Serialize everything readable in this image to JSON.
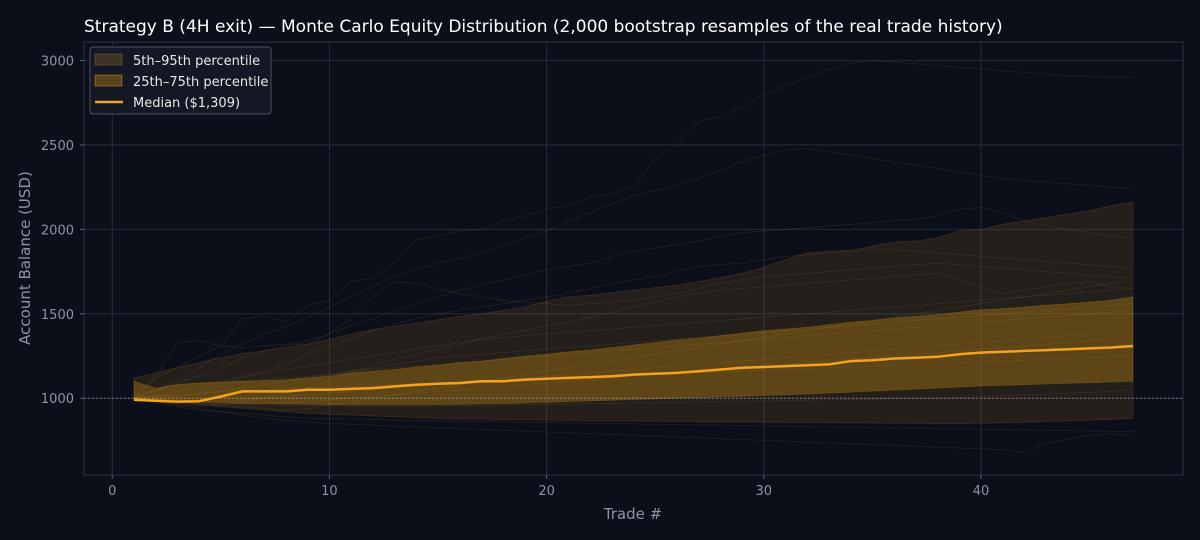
{
  "chart_data": {
    "type": "line",
    "title": "Strategy B (4H exit) — Monte Carlo Equity Distribution (2,000 bootstrap resamples of the real trade history)",
    "xlabel": "Trade #",
    "ylabel": "Account Balance (USD)",
    "xlim": [
      -1.3,
      49.3
    ],
    "ylim": [
      545,
      3110
    ],
    "xticks": [
      0,
      10,
      20,
      30,
      40
    ],
    "yticks": [
      1000,
      1500,
      2000,
      2500,
      3000
    ],
    "grid": true,
    "legend_position": "top-left",
    "reference_line": {
      "y": 1000,
      "style": "dotted"
    },
    "x": [
      1,
      2,
      3,
      4,
      5,
      6,
      7,
      8,
      9,
      10,
      11,
      12,
      13,
      14,
      15,
      16,
      17,
      18,
      19,
      20,
      21,
      22,
      23,
      24,
      25,
      26,
      27,
      28,
      29,
      30,
      31,
      32,
      33,
      34,
      35,
      36,
      37,
      38,
      39,
      40,
      41,
      42,
      43,
      44,
      45,
      46,
      47
    ],
    "series": [
      {
        "name": "5th–95th percentile",
        "kind": "band",
        "color": "#a0702a",
        "lower": [
          990,
          980,
          970,
          960,
          950,
          940,
          930,
          920,
          910,
          905,
          900,
          895,
          890,
          885,
          880,
          878,
          876,
          874,
          872,
          870,
          868,
          866,
          865,
          864,
          863,
          862,
          861,
          860,
          859,
          858,
          857,
          856,
          855,
          854,
          853,
          852,
          851,
          850,
          850,
          852,
          855,
          858,
          862,
          866,
          870,
          875,
          880
        ],
        "upper": [
          1120,
          1150,
          1180,
          1210,
          1240,
          1265,
          1280,
          1300,
          1320,
          1350,
          1380,
          1405,
          1425,
          1445,
          1465,
          1485,
          1500,
          1520,
          1540,
          1575,
          1600,
          1610,
          1625,
          1640,
          1655,
          1670,
          1690,
          1715,
          1740,
          1775,
          1820,
          1860,
          1870,
          1875,
          1900,
          1925,
          1930,
          1950,
          1990,
          2000,
          2030,
          2050,
          2070,
          2090,
          2110,
          2140,
          2160
        ]
      },
      {
        "name": "25th–75th percentile",
        "kind": "band",
        "color": "#d9940f",
        "lower": [
          990,
          985,
          982,
          978,
          975,
          970,
          968,
          966,
          964,
          962,
          960,
          960,
          960,
          961,
          962,
          964,
          966,
          968,
          972,
          976,
          980,
          984,
          988,
          992,
          996,
          1000,
          1004,
          1008,
          1012,
          1016,
          1020,
          1025,
          1030,
          1036,
          1042,
          1048,
          1054,
          1060,
          1066,
          1072,
          1076,
          1080,
          1084,
          1088,
          1092,
          1096,
          1100
        ],
        "upper": [
          1100,
          1060,
          1080,
          1090,
          1095,
          1100,
          1105,
          1110,
          1120,
          1130,
          1150,
          1160,
          1170,
          1185,
          1195,
          1210,
          1220,
          1235,
          1250,
          1260,
          1275,
          1285,
          1300,
          1315,
          1330,
          1345,
          1355,
          1370,
          1385,
          1400,
          1410,
          1420,
          1435,
          1450,
          1460,
          1475,
          1485,
          1495,
          1510,
          1525,
          1530,
          1540,
          1550,
          1560,
          1570,
          1580,
          1600
        ]
      },
      {
        "name": "Median ($1,309)",
        "kind": "line",
        "color": "#f5a21d",
        "values": [
          990,
          985,
          980,
          982,
          1010,
          1040,
          1040,
          1040,
          1050,
          1050,
          1055,
          1060,
          1070,
          1080,
          1085,
          1090,
          1100,
          1100,
          1110,
          1115,
          1120,
          1125,
          1130,
          1140,
          1145,
          1150,
          1160,
          1170,
          1180,
          1185,
          1190,
          1195,
          1200,
          1220,
          1225,
          1235,
          1240,
          1245,
          1260,
          1270,
          1275,
          1280,
          1285,
          1290,
          1295,
          1300,
          1309
        ]
      }
    ],
    "sample_paths": [
      [
        1000,
        1120,
        1180,
        1250,
        1310,
        1470,
        1490,
        1450,
        1550,
        1580,
        1690,
        1710,
        1800,
        1940,
        1960,
        1990,
        2000,
        2050,
        2080,
        2120,
        2140,
        2190,
        2210,
        2250,
        2420,
        2500,
        2640,
        2670,
        2720,
        2800,
        2850,
        2900,
        2950,
        2980,
        3000,
        2990,
        2980,
        2970,
        2960,
        2950,
        2940,
        2930,
        2920,
        2910,
        2905,
        2900,
        2900
      ],
      [
        1000,
        1050,
        1100,
        1180,
        1260,
        1320,
        1380,
        1420,
        1480,
        1540,
        1600,
        1660,
        1720,
        1760,
        1800,
        1830,
        1860,
        1900,
        1950,
        1990,
        2050,
        2100,
        2150,
        2200,
        2230,
        2260,
        2300,
        2350,
        2400,
        2440,
        2470,
        2480,
        2460,
        2440,
        2420,
        2400,
        2380,
        2360,
        2340,
        2320,
        2300,
        2290,
        2280,
        2270,
        2260,
        2250,
        2240
      ],
      [
        1000,
        1040,
        1090,
        1130,
        1180,
        1240,
        1280,
        1310,
        1340,
        1380,
        1430,
        1470,
        1520,
        1560,
        1600,
        1640,
        1670,
        1700,
        1730,
        1760,
        1780,
        1800,
        1840,
        1870,
        1890,
        1910,
        1930,
        1960,
        1980,
        1990,
        2000,
        2010,
        2020,
        2030,
        2040,
        2050,
        2060,
        2080,
        2120,
        2130,
        2100,
        2050,
        2020,
        2000,
        1980,
        1960,
        1950
      ],
      [
        1000,
        1130,
        1330,
        1340,
        1310,
        1300,
        1310,
        1320,
        1320,
        1380,
        1480,
        1600,
        1690,
        1680,
        1650,
        1620,
        1600,
        1580,
        1570,
        1560,
        1550,
        1560,
        1570,
        1580,
        1600,
        1620,
        1650,
        1680,
        1700,
        1720,
        1730,
        1740,
        1750,
        1760,
        1770,
        1780,
        1790,
        1800,
        1790,
        1780,
        1770,
        1760,
        1750,
        1740,
        1730,
        1720,
        1710
      ],
      [
        1000,
        1020,
        1010,
        1030,
        1080,
        1120,
        1160,
        1200,
        1260,
        1300,
        1350,
        1400,
        1440,
        1470,
        1500,
        1520,
        1540,
        1560,
        1580,
        1600,
        1620,
        1650,
        1680,
        1700,
        1720,
        1750,
        1780,
        1790,
        1800,
        1820,
        1840,
        1850,
        1860,
        1870,
        1880,
        1880,
        1870,
        1860,
        1850,
        1840,
        1830,
        1820,
        1810,
        1800,
        1790,
        1780,
        1770
      ],
      [
        1000,
        980,
        960,
        950,
        960,
        980,
        1000,
        1030,
        1060,
        1100,
        1150,
        1200,
        1230,
        1260,
        1290,
        1320,
        1350,
        1380,
        1400,
        1430,
        1450,
        1480,
        1510,
        1540,
        1570,
        1600,
        1620,
        1640,
        1650,
        1660,
        1670,
        1680,
        1690,
        1700,
        1710,
        1720,
        1730,
        1740,
        1700,
        1660,
        1620,
        1640,
        1660,
        1680,
        1690,
        1660,
        1650
      ],
      [
        1000,
        1010,
        1040,
        1070,
        1100,
        1130,
        1150,
        1170,
        1190,
        1210,
        1230,
        1250,
        1270,
        1290,
        1310,
        1330,
        1350,
        1360,
        1370,
        1380,
        1390,
        1400,
        1410,
        1420,
        1430,
        1440,
        1450,
        1460,
        1470,
        1480,
        1490,
        1500,
        1510,
        1520,
        1530,
        1540,
        1550,
        1560,
        1570,
        1580,
        1590,
        1600,
        1610,
        1620,
        1630,
        1640,
        1650
      ],
      [
        1000,
        990,
        980,
        970,
        960,
        950,
        940,
        930,
        940,
        960,
        980,
        1000,
        1020,
        1040,
        1060,
        1080,
        1100,
        1120,
        1140,
        1160,
        1180,
        1200,
        1220,
        1240,
        1260,
        1280,
        1300,
        1320,
        1340,
        1360,
        1380,
        1400,
        1420,
        1440,
        1460,
        1480,
        1500,
        1520,
        1540,
        1560,
        1580,
        1600,
        1620,
        1640,
        1660,
        1680,
        1700
      ],
      [
        1000,
        1000,
        1010,
        1020,
        1040,
        1060,
        1080,
        1100,
        1120,
        1140,
        1160,
        1170,
        1180,
        1190,
        1200,
        1210,
        1220,
        1230,
        1240,
        1250,
        1260,
        1270,
        1280,
        1290,
        1300,
        1310,
        1320,
        1330,
        1340,
        1350,
        1360,
        1370,
        1380,
        1390,
        1400,
        1410,
        1420,
        1430,
        1440,
        1450,
        1460,
        1470,
        1480,
        1490,
        1500,
        1510,
        1520
      ],
      [
        1000,
        995,
        990,
        985,
        980,
        990,
        1000,
        1010,
        1020,
        1030,
        1040,
        1050,
        1060,
        1070,
        1080,
        1090,
        1100,
        1110,
        1120,
        1130,
        1140,
        1150,
        1160,
        1170,
        1180,
        1190,
        1200,
        1210,
        1220,
        1230,
        1240,
        1250,
        1260,
        1270,
        1280,
        1290,
        1300,
        1310,
        1320,
        1330,
        1340,
        1350,
        1360,
        1370,
        1380,
        1390,
        1400
      ],
      [
        1000,
        990,
        980,
        975,
        970,
        965,
        960,
        958,
        956,
        954,
        952,
        950,
        950,
        952,
        954,
        956,
        958,
        960,
        962,
        964,
        966,
        968,
        970,
        972,
        974,
        976,
        978,
        980,
        982,
        984,
        986,
        988,
        990,
        992,
        994,
        996,
        998,
        1000,
        1005,
        1010,
        1015,
        1020,
        1025,
        1030,
        1035,
        1040,
        1050
      ],
      [
        1000,
        970,
        950,
        930,
        920,
        910,
        900,
        890,
        880,
        880,
        880,
        875,
        870,
        868,
        866,
        864,
        862,
        860,
        858,
        856,
        854,
        852,
        850,
        848,
        846,
        844,
        842,
        840,
        838,
        836,
        834,
        832,
        830,
        828,
        826,
        824,
        822,
        820,
        818,
        816,
        814,
        812,
        810,
        808,
        806,
        804,
        802
      ],
      [
        1000,
        980,
        960,
        940,
        920,
        900,
        880,
        870,
        860,
        850,
        845,
        840,
        835,
        830,
        825,
        820,
        815,
        810,
        805,
        800,
        795,
        790,
        785,
        780,
        775,
        770,
        765,
        760,
        755,
        750,
        745,
        740,
        735,
        730,
        725,
        720,
        715,
        710,
        705,
        700,
        695,
        680,
        730,
        760,
        780,
        790,
        780
      ],
      [
        1000,
        1010,
        1020,
        1030,
        1040,
        1045,
        1050,
        1055,
        1060,
        1065,
        1070,
        1075,
        1080,
        1085,
        1090,
        1095,
        1100,
        1105,
        1110,
        1115,
        1120,
        1125,
        1130,
        1135,
        1140,
        1145,
        1150,
        1155,
        1160,
        1165,
        1170,
        1175,
        1180,
        1185,
        1190,
        1195,
        1200,
        1205,
        1210,
        1215,
        1220,
        1225,
        1230,
        1235,
        1240,
        1245,
        1250
      ],
      [
        1000,
        1050,
        1080,
        1090,
        1090,
        1100,
        1110,
        1120,
        1130,
        1140,
        1160,
        1180,
        1200,
        1220,
        1240,
        1250,
        1260,
        1270,
        1280,
        1290,
        1300,
        1310,
        1320,
        1330,
        1340,
        1350,
        1360,
        1370,
        1380,
        1390,
        1400,
        1410,
        1420,
        1430,
        1440,
        1450,
        1460,
        1470,
        1480,
        1490,
        1500,
        1510,
        1520,
        1530,
        1540,
        1550,
        1560
      ],
      [
        1000,
        985,
        975,
        970,
        965,
        968,
        972,
        976,
        980,
        990,
        1000,
        1010,
        1020,
        1030,
        1040,
        1050,
        1060,
        1070,
        1080,
        1090,
        1100,
        1110,
        1120,
        1130,
        1140,
        1150,
        1160,
        1170,
        1180,
        1190,
        1200,
        1210,
        1220,
        1230,
        1240,
        1250,
        1260,
        1270,
        1280,
        1290,
        1300,
        1310,
        1320,
        1330,
        1340,
        1350,
        1360
      ]
    ]
  }
}
